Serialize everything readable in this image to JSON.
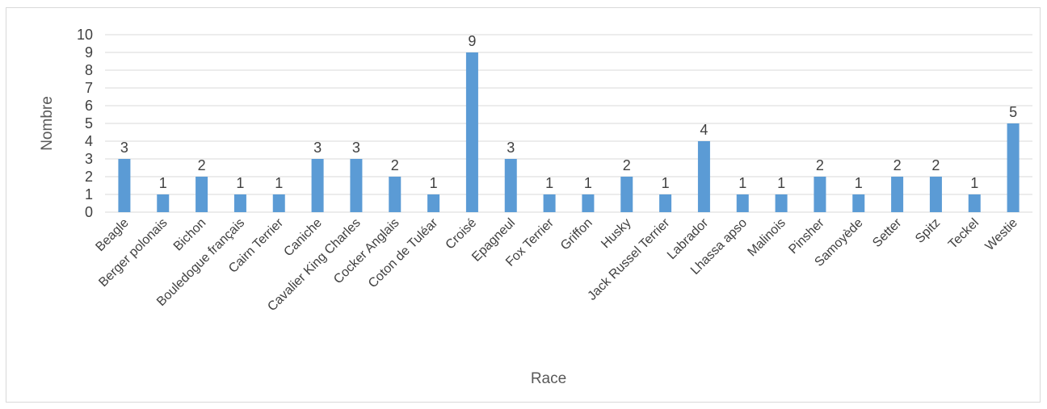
{
  "chart_data": {
    "type": "bar",
    "title": "",
    "xlabel": "Race",
    "ylabel": "Nombre",
    "ylim": [
      0,
      10
    ],
    "yticks": [
      0,
      1,
      2,
      3,
      4,
      5,
      6,
      7,
      8,
      9,
      10
    ],
    "grid": true,
    "legend": "none",
    "bar_color": "#5b9bd5",
    "grid_color": "#d9d9d9",
    "categories": [
      "Beagle",
      "Berger polonais",
      "Bichon",
      "Bouledogue français",
      "Cairn Terrier",
      "Caniche",
      "Cavalier King Charles",
      "Cocker Anglais",
      "Coton de Tuléar",
      "Croisé",
      "Epagneul",
      "Fox Terrier",
      "Griffon",
      "Husky",
      "Jack Russel Terrier",
      "Labrador",
      "Lhassa apso",
      "Malinois",
      "Pinsher",
      "Samoyède",
      "Setter",
      "Spitz",
      "Teckel",
      "Westie"
    ],
    "values": [
      3,
      1,
      2,
      1,
      1,
      3,
      3,
      2,
      1,
      9,
      3,
      1,
      1,
      2,
      1,
      4,
      1,
      1,
      2,
      1,
      2,
      2,
      1,
      5
    ],
    "data_labels": true
  }
}
